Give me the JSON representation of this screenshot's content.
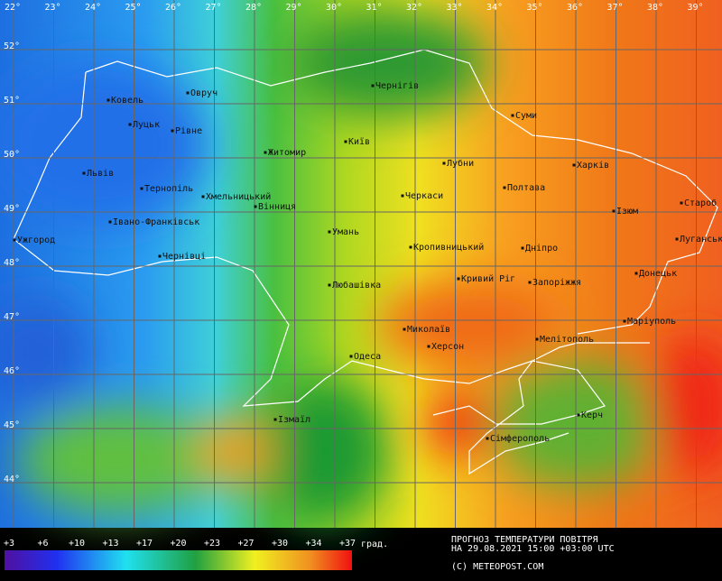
{
  "map": {
    "longitudes": [
      "22°",
      "23°",
      "24°",
      "25°",
      "26°",
      "27°",
      "28°",
      "29°",
      "30°",
      "31°",
      "32°",
      "33°",
      "34°",
      "35°",
      "36°",
      "37°",
      "38°",
      "39°"
    ],
    "latitudes": [
      "52°",
      "51°",
      "50°",
      "49°",
      "48°",
      "47°",
      "46°",
      "45°",
      "44°"
    ],
    "cities": [
      "Ковель",
      "Овруч",
      "Луцьк",
      "Рівне",
      "Житомир",
      "Київ",
      "Чернігів",
      "Суми",
      "Львів",
      "Тернопіль",
      "Хмельницький",
      "Вінниця",
      "Лубни",
      "Харків",
      "Черкаси",
      "Полтава",
      "Староб",
      "Ізюм",
      "Ужгород",
      "Івано-Франківськ",
      "Умань",
      "Кропивницький",
      "Дніпро",
      "Луганськ",
      "Чернівці",
      "Любашівка",
      "Кривий Ріг",
      "Запоріжжя",
      "Донецьк",
      "Маріуполь",
      "Миколаїв",
      "Мелітополь",
      "Херсон",
      "Одеса",
      "Керч",
      "Ізмаїл",
      "Сімферополь"
    ]
  },
  "legend": {
    "ticks": [
      "+3",
      "+6",
      "+10",
      "+13",
      "+17",
      "+20",
      "+23",
      "+27",
      "+30",
      "+34",
      "+37"
    ],
    "unit": "град."
  },
  "caption": {
    "line1": "ПРОГНОЗ ТЕМПЕРАТУРИ ПОВІТРЯ",
    "line2": "НА 29.08.2021 15:00 +03:00 UTC",
    "credit": "(С) METEOPOST.COM"
  }
}
